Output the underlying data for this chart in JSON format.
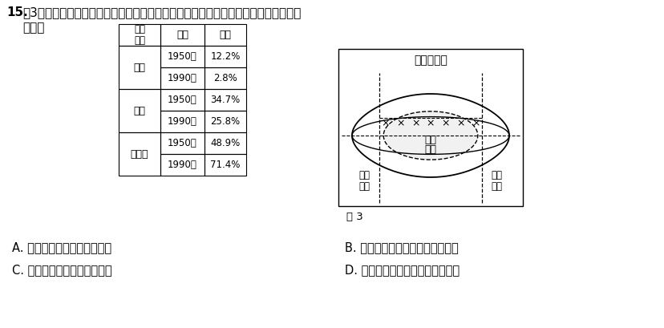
{
  "question_number": "15.",
  "question_text_line1": "图3为第二次世界大战后美国产业结构和阶层结构示意图。这表明，第二次世界大战以",
  "question_text_line2": "来美国",
  "table_header_col0": "产业\n类型",
  "table_header_col1": "年份",
  "table_header_col2": "美国",
  "row_years": [
    "1950年",
    "1990年",
    "1950年",
    "1990年",
    "1950年",
    "1990年"
  ],
  "row_values": [
    "12.2%",
    "2.8%",
    "34.7%",
    "25.8%",
    "48.9%",
    "71.4%"
  ],
  "cat_info": [
    [
      "农业",
      0,
      2
    ],
    [
      "工业",
      2,
      4
    ],
    [
      "服务业",
      4,
      6
    ]
  ],
  "diagram_title": "榄榄型社会",
  "diagram_label_middle_line1": "中间",
  "diagram_label_middle_line2": "阶层",
  "diagram_label_left_line1": "精英",
  "diagram_label_left_line2": "阶层",
  "diagram_label_right_line1": "社会",
  "diagram_label_right_line2": "底层",
  "figure_caption": "图 3",
  "options": [
    [
      "A. 精英阶层主导国家发展态势",
      "B. 社会阶层贫富差距呈现扩大趋势"
    ],
    [
      "C. 社会基本矛盾出现新的变化",
      "D. 第三产业发展促进中间阶层增加"
    ]
  ],
  "bg_color": "#ffffff"
}
